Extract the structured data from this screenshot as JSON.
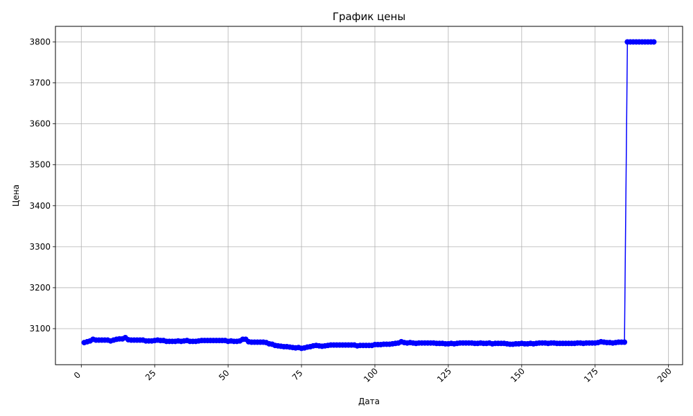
{
  "chart_data": {
    "type": "line",
    "title": "График цены",
    "xlabel": "Дата",
    "ylabel": "Цена",
    "xlim": [
      -8.8,
      204.8
    ],
    "ylim": [
      3012,
      3838
    ],
    "xticks": [
      0,
      25,
      50,
      75,
      100,
      125,
      150,
      175,
      200
    ],
    "yticks": [
      3100,
      3200,
      3300,
      3400,
      3500,
      3600,
      3700,
      3800
    ],
    "grid": true,
    "line_color": "#0000ff",
    "marker": "circle",
    "series": [
      {
        "values": [
          [
            1,
            3066
          ],
          [
            2,
            3068
          ],
          [
            3,
            3070
          ],
          [
            4,
            3074
          ],
          [
            5,
            3072
          ],
          [
            6,
            3072
          ],
          [
            7,
            3072
          ],
          [
            8,
            3072
          ],
          [
            9,
            3072
          ],
          [
            10,
            3070
          ],
          [
            11,
            3072
          ],
          [
            12,
            3074
          ],
          [
            13,
            3075
          ],
          [
            14,
            3075
          ],
          [
            15,
            3078
          ],
          [
            16,
            3073
          ],
          [
            17,
            3072
          ],
          [
            18,
            3072
          ],
          [
            19,
            3072
          ],
          [
            20,
            3072
          ],
          [
            21,
            3072
          ],
          [
            22,
            3070
          ],
          [
            23,
            3070
          ],
          [
            24,
            3070
          ],
          [
            25,
            3071
          ],
          [
            26,
            3072
          ],
          [
            27,
            3071
          ],
          [
            28,
            3071
          ],
          [
            29,
            3069
          ],
          [
            30,
            3069
          ],
          [
            31,
            3069
          ],
          [
            32,
            3069
          ],
          [
            33,
            3070
          ],
          [
            34,
            3069
          ],
          [
            35,
            3070
          ],
          [
            36,
            3071
          ],
          [
            37,
            3069
          ],
          [
            38,
            3069
          ],
          [
            39,
            3069
          ],
          [
            40,
            3070
          ],
          [
            41,
            3071
          ],
          [
            42,
            3071
          ],
          [
            43,
            3071
          ],
          [
            44,
            3071
          ],
          [
            45,
            3071
          ],
          [
            46,
            3071
          ],
          [
            47,
            3071
          ],
          [
            48,
            3071
          ],
          [
            49,
            3071
          ],
          [
            50,
            3069
          ],
          [
            51,
            3070
          ],
          [
            52,
            3069
          ],
          [
            53,
            3069
          ],
          [
            54,
            3070
          ],
          [
            55,
            3074
          ],
          [
            56,
            3074
          ],
          [
            57,
            3068
          ],
          [
            58,
            3067
          ],
          [
            59,
            3067
          ],
          [
            60,
            3067
          ],
          [
            61,
            3067
          ],
          [
            62,
            3067
          ],
          [
            63,
            3066
          ],
          [
            64,
            3063
          ],
          [
            65,
            3062
          ],
          [
            66,
            3059
          ],
          [
            67,
            3058
          ],
          [
            68,
            3057
          ],
          [
            69,
            3056
          ],
          [
            70,
            3056
          ],
          [
            71,
            3055
          ],
          [
            72,
            3054
          ],
          [
            73,
            3053
          ],
          [
            74,
            3054
          ],
          [
            75,
            3052
          ],
          [
            76,
            3053
          ],
          [
            77,
            3055
          ],
          [
            78,
            3056
          ],
          [
            79,
            3058
          ],
          [
            80,
            3059
          ],
          [
            81,
            3058
          ],
          [
            82,
            3057
          ],
          [
            83,
            3058
          ],
          [
            84,
            3059
          ],
          [
            85,
            3060
          ],
          [
            86,
            3060
          ],
          [
            87,
            3060
          ],
          [
            88,
            3060
          ],
          [
            89,
            3060
          ],
          [
            90,
            3060
          ],
          [
            91,
            3060
          ],
          [
            92,
            3060
          ],
          [
            93,
            3060
          ],
          [
            94,
            3058
          ],
          [
            95,
            3059
          ],
          [
            96,
            3059
          ],
          [
            97,
            3059
          ],
          [
            98,
            3059
          ],
          [
            99,
            3059
          ],
          [
            100,
            3061
          ],
          [
            101,
            3061
          ],
          [
            102,
            3061
          ],
          [
            103,
            3062
          ],
          [
            104,
            3062
          ],
          [
            105,
            3062
          ],
          [
            106,
            3063
          ],
          [
            107,
            3064
          ],
          [
            108,
            3065
          ],
          [
            109,
            3068
          ],
          [
            110,
            3066
          ],
          [
            111,
            3065
          ],
          [
            112,
            3066
          ],
          [
            113,
            3065
          ],
          [
            114,
            3064
          ],
          [
            115,
            3065
          ],
          [
            116,
            3065
          ],
          [
            117,
            3065
          ],
          [
            118,
            3065
          ],
          [
            119,
            3065
          ],
          [
            120,
            3065
          ],
          [
            121,
            3064
          ],
          [
            122,
            3064
          ],
          [
            123,
            3064
          ],
          [
            124,
            3063
          ],
          [
            125,
            3063
          ],
          [
            126,
            3064
          ],
          [
            127,
            3063
          ],
          [
            128,
            3064
          ],
          [
            129,
            3065
          ],
          [
            130,
            3065
          ],
          [
            131,
            3065
          ],
          [
            132,
            3065
          ],
          [
            133,
            3065
          ],
          [
            134,
            3064
          ],
          [
            135,
            3064
          ],
          [
            136,
            3065
          ],
          [
            137,
            3064
          ],
          [
            138,
            3064
          ],
          [
            139,
            3065
          ],
          [
            140,
            3063
          ],
          [
            141,
            3064
          ],
          [
            142,
            3064
          ],
          [
            143,
            3064
          ],
          [
            144,
            3064
          ],
          [
            145,
            3063
          ],
          [
            146,
            3062
          ],
          [
            147,
            3062
          ],
          [
            148,
            3063
          ],
          [
            149,
            3063
          ],
          [
            150,
            3064
          ],
          [
            151,
            3063
          ],
          [
            152,
            3063
          ],
          [
            153,
            3064
          ],
          [
            154,
            3063
          ],
          [
            155,
            3064
          ],
          [
            156,
            3065
          ],
          [
            157,
            3065
          ],
          [
            158,
            3065
          ],
          [
            159,
            3064
          ],
          [
            160,
            3065
          ],
          [
            161,
            3065
          ],
          [
            162,
            3064
          ],
          [
            163,
            3064
          ],
          [
            164,
            3064
          ],
          [
            165,
            3064
          ],
          [
            166,
            3064
          ],
          [
            167,
            3064
          ],
          [
            168,
            3064
          ],
          [
            169,
            3065
          ],
          [
            170,
            3065
          ],
          [
            171,
            3064
          ],
          [
            172,
            3065
          ],
          [
            173,
            3065
          ],
          [
            174,
            3065
          ],
          [
            175,
            3065
          ],
          [
            176,
            3066
          ],
          [
            177,
            3068
          ],
          [
            178,
            3067
          ],
          [
            179,
            3066
          ],
          [
            180,
            3066
          ],
          [
            181,
            3065
          ],
          [
            182,
            3066
          ],
          [
            183,
            3067
          ],
          [
            184,
            3067
          ],
          [
            185,
            3067
          ],
          [
            186,
            3800
          ],
          [
            187,
            3800
          ],
          [
            188,
            3800
          ],
          [
            189,
            3800
          ],
          [
            190,
            3800
          ],
          [
            191,
            3800
          ],
          [
            192,
            3800
          ],
          [
            193,
            3800
          ],
          [
            194,
            3800
          ],
          [
            195,
            3800
          ]
        ]
      }
    ]
  }
}
